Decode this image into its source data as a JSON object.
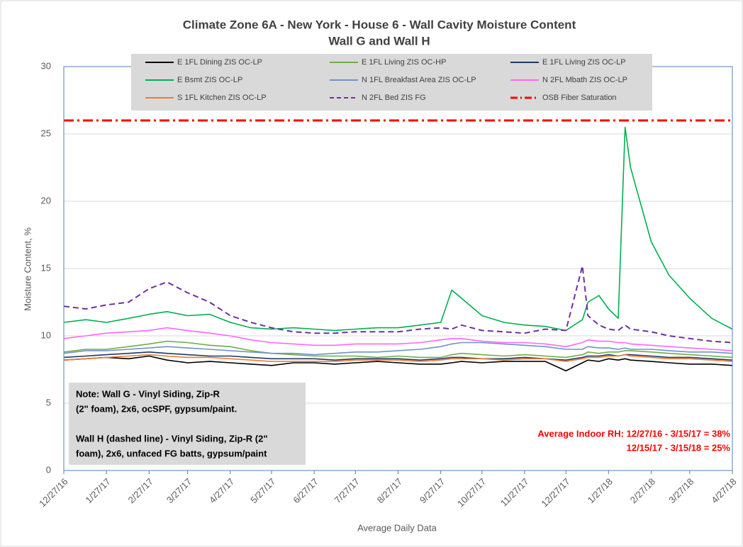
{
  "chart_data": {
    "type": "line",
    "title": [
      "Climate Zone 6A - New York - House 6 - Wall Cavity Moisture Content",
      "Wall G and Wall H"
    ],
    "ylabel": "Moisture Content, %",
    "xlabel": "Average Daily Data",
    "x": [
      "12/27/16",
      "1/12/17",
      "1/27/17",
      "2/12/17",
      "2/27/17",
      "3/12/17",
      "3/27/17",
      "4/12/17",
      "4/27/17",
      "5/12/17",
      "5/27/17",
      "6/12/17",
      "6/27/17",
      "7/12/17",
      "7/27/17",
      "8/12/17",
      "8/27/17",
      "9/12/17",
      "9/27/17",
      "10/5/17",
      "10/12/17",
      "10/27/17",
      "11/12/17",
      "11/27/17",
      "12/12/17",
      "12/27/17",
      "1/8/18",
      "1/12/18",
      "1/20/18",
      "1/27/18",
      "2/3/18",
      "2/8/18",
      "2/12/18",
      "2/27/18",
      "3/12/18",
      "3/27/18",
      "4/12/18",
      "4/27/18"
    ],
    "xlim": [
      "12/27/16",
      "4/27/18"
    ],
    "xticks": [
      "12/27/16",
      "1/27/17",
      "2/27/17",
      "3/27/17",
      "4/27/17",
      "5/27/17",
      "6/27/17",
      "7/27/17",
      "8/27/17",
      "9/27/17",
      "10/27/17",
      "11/27/17",
      "12/27/17",
      "1/27/18",
      "2/27/18",
      "3/27/18",
      "4/27/18"
    ],
    "ylim": [
      0,
      30
    ],
    "yticks": [
      0,
      5,
      10,
      15,
      20,
      25,
      30
    ],
    "grid": true,
    "series": [
      {
        "name": "E 1FL Dining ZIS OC-LP",
        "color": "#000000",
        "dashed": false,
        "values": [
          8.2,
          8.3,
          8.4,
          8.3,
          8.5,
          8.2,
          8.0,
          8.1,
          8.0,
          7.9,
          7.8,
          8.0,
          8.0,
          7.9,
          8.0,
          8.1,
          8.0,
          7.9,
          7.9,
          8.0,
          8.1,
          8.0,
          8.1,
          8.1,
          8.1,
          7.4,
          8.0,
          8.2,
          8.1,
          8.3,
          8.2,
          8.3,
          8.2,
          8.1,
          8.0,
          7.9,
          7.9,
          7.8
        ]
      },
      {
        "name": "E 1FL Living ZIS OC-HP",
        "color": "#70ad47",
        "dashed": false,
        "values": [
          8.8,
          9.0,
          9.0,
          9.2,
          9.4,
          9.6,
          9.5,
          9.3,
          9.2,
          8.9,
          8.7,
          8.6,
          8.5,
          8.5,
          8.5,
          8.4,
          8.5,
          8.4,
          8.4,
          8.6,
          8.7,
          8.6,
          8.5,
          8.6,
          8.5,
          8.4,
          8.6,
          8.8,
          8.7,
          8.8,
          8.8,
          8.9,
          8.9,
          8.8,
          8.7,
          8.6,
          8.5,
          8.4
        ]
      },
      {
        "name": "E 1FL Living ZIS OC-LP",
        "color": "#1f3864",
        "dashed": false,
        "values": [
          8.4,
          8.5,
          8.6,
          8.7,
          8.8,
          8.7,
          8.6,
          8.5,
          8.5,
          8.4,
          8.3,
          8.3,
          8.3,
          8.2,
          8.3,
          8.3,
          8.3,
          8.2,
          8.3,
          8.4,
          8.4,
          8.3,
          8.3,
          8.4,
          8.3,
          8.2,
          8.4,
          8.5,
          8.5,
          8.6,
          8.5,
          8.6,
          8.6,
          8.5,
          8.4,
          8.4,
          8.3,
          8.2
        ]
      },
      {
        "name": "E Bsmt ZIS OC-LP",
        "color": "#00b050",
        "dashed": false,
        "values": [
          11.0,
          11.2,
          11.0,
          11.3,
          11.6,
          11.8,
          11.5,
          11.6,
          11.0,
          10.6,
          10.5,
          10.6,
          10.5,
          10.4,
          10.5,
          10.6,
          10.6,
          10.8,
          11.0,
          13.4,
          12.8,
          11.5,
          11.0,
          10.8,
          10.7,
          10.4,
          11.2,
          12.5,
          13.0,
          12.0,
          11.3,
          25.5,
          22.5,
          17.0,
          14.5,
          12.8,
          11.3,
          10.5
        ]
      },
      {
        "name": "N 1FL Breakfast Area ZIS OC-LP",
        "color": "#6f93c9",
        "dashed": false,
        "values": [
          8.7,
          8.9,
          8.9,
          9.0,
          9.1,
          9.2,
          9.1,
          9.0,
          8.9,
          8.8,
          8.7,
          8.7,
          8.6,
          8.7,
          8.8,
          8.8,
          8.9,
          9.0,
          9.2,
          9.4,
          9.5,
          9.5,
          9.4,
          9.3,
          9.2,
          9.0,
          9.0,
          9.2,
          9.1,
          9.1,
          9.0,
          9.1,
          9.0,
          9.0,
          8.9,
          8.8,
          8.8,
          8.7
        ]
      },
      {
        "name": "N 2FL Mbath ZIS OC-LP",
        "color": "#ff66ff",
        "dashed": false,
        "values": [
          9.8,
          10.0,
          10.2,
          10.3,
          10.4,
          10.6,
          10.4,
          10.2,
          10.0,
          9.7,
          9.5,
          9.4,
          9.3,
          9.3,
          9.4,
          9.4,
          9.4,
          9.5,
          9.7,
          9.8,
          9.8,
          9.6,
          9.5,
          9.5,
          9.4,
          9.2,
          9.5,
          9.7,
          9.6,
          9.6,
          9.5,
          9.5,
          9.4,
          9.3,
          9.2,
          9.1,
          9.0,
          8.9
        ]
      },
      {
        "name": "S 1FL Kitchen ZIS OC-LP",
        "color": "#ed7d31",
        "dashed": false,
        "values": [
          8.2,
          8.3,
          8.4,
          8.5,
          8.6,
          8.5,
          8.4,
          8.4,
          8.3,
          8.2,
          8.1,
          8.1,
          8.1,
          8.1,
          8.2,
          8.2,
          8.2,
          8.1,
          8.2,
          8.3,
          8.3,
          8.3,
          8.2,
          8.3,
          8.3,
          8.1,
          8.3,
          8.4,
          8.4,
          8.5,
          8.5,
          8.6,
          8.5,
          8.4,
          8.3,
          8.3,
          8.2,
          8.1
        ]
      },
      {
        "name": "N 2FL Bed ZIS FG",
        "color": "#7030a0",
        "dashed": true,
        "values": [
          12.2,
          12.0,
          12.3,
          12.5,
          13.5,
          14.0,
          13.2,
          12.5,
          11.5,
          11.0,
          10.6,
          10.3,
          10.2,
          10.2,
          10.3,
          10.3,
          10.3,
          10.5,
          10.6,
          10.5,
          10.8,
          10.4,
          10.3,
          10.2,
          10.5,
          10.4,
          15.2,
          11.5,
          10.8,
          10.5,
          10.4,
          10.8,
          10.5,
          10.3,
          10.0,
          9.8,
          9.6,
          9.5
        ]
      }
    ],
    "reference_line": {
      "name": "OSB Fiber Saturation",
      "value": 26,
      "color": "#ff0000"
    },
    "note": [
      [
        "Note: Wall G - Vinyl Siding, Zip-R",
        "(2\" foam), 2x6, ocSPF, gypsum/paint."
      ],
      [
        "Wall H (dashed line) - Vinyl Siding, Zip-R (2\"",
        "foam), 2x6, unfaced FG batts, gypsum/paint"
      ]
    ],
    "annotation": [
      "Average Indoor RH: 12/27/16 - 3/15/17 = 38%",
      "12/15/17 - 3/15/18 = 25%"
    ]
  }
}
